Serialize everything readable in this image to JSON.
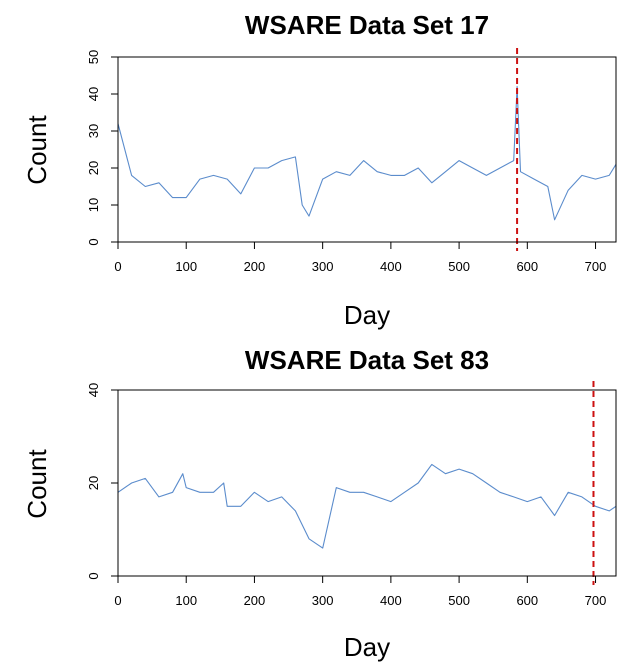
{
  "chart_data": [
    {
      "type": "line",
      "title": "WSARE Data Set 17",
      "xlabel": "Day",
      "ylabel": "Count",
      "xlim": [
        0,
        730
      ],
      "ylim": [
        0,
        50
      ],
      "xticks": [
        0,
        100,
        200,
        300,
        400,
        500,
        600,
        700
      ],
      "yticks": [
        0,
        10,
        20,
        30,
        40,
        50
      ],
      "tick_labels_x": [
        "0",
        "100",
        "200",
        "300",
        "400",
        "500",
        "600",
        "700"
      ],
      "tick_labels_y": [
        "0",
        "10",
        "20",
        "30",
        "40",
        "50"
      ],
      "grid": false,
      "series_color": "#5b8ccc",
      "marker_color": "#cc1111",
      "vline_x": 585,
      "x": [
        0,
        20,
        40,
        60,
        80,
        100,
        120,
        140,
        160,
        180,
        200,
        220,
        240,
        260,
        270,
        280,
        300,
        320,
        340,
        360,
        380,
        400,
        420,
        440,
        460,
        480,
        500,
        520,
        540,
        560,
        580,
        585,
        590,
        610,
        630,
        640,
        660,
        680,
        700,
        720,
        730
      ],
      "values": [
        32,
        18,
        15,
        16,
        12,
        12,
        17,
        18,
        17,
        13,
        20,
        20,
        22,
        23,
        10,
        7,
        17,
        19,
        18,
        22,
        19,
        18,
        18,
        20,
        16,
        19,
        22,
        20,
        18,
        20,
        22,
        42,
        19,
        17,
        15,
        6,
        14,
        18,
        17,
        18,
        21
      ]
    },
    {
      "type": "line",
      "title": "WSARE Data Set 83",
      "xlabel": "Day",
      "ylabel": "Count",
      "xlim": [
        0,
        730
      ],
      "ylim": [
        0,
        40
      ],
      "xticks": [
        0,
        100,
        200,
        300,
        400,
        500,
        600,
        700
      ],
      "yticks": [
        0,
        20,
        40
      ],
      "tick_labels_x": [
        "0",
        "100",
        "200",
        "300",
        "400",
        "500",
        "600",
        "700"
      ],
      "tick_labels_y": [
        "0",
        "20",
        "40"
      ],
      "grid": false,
      "series_color": "#5b8ccc",
      "marker_color": "#cc1111",
      "vline_x": 697,
      "x": [
        0,
        20,
        40,
        60,
        80,
        95,
        100,
        120,
        140,
        155,
        160,
        180,
        200,
        220,
        240,
        260,
        280,
        300,
        320,
        340,
        360,
        380,
        400,
        420,
        440,
        460,
        480,
        500,
        520,
        540,
        560,
        580,
        600,
        620,
        640,
        660,
        680,
        700,
        720,
        730
      ],
      "values": [
        18,
        20,
        21,
        17,
        18,
        22,
        19,
        18,
        18,
        20,
        15,
        15,
        18,
        16,
        17,
        14,
        8,
        6,
        19,
        18,
        18,
        17,
        16,
        18,
        20,
        24,
        22,
        23,
        22,
        20,
        18,
        17,
        16,
        17,
        13,
        18,
        17,
        15,
        14,
        15
      ]
    }
  ]
}
